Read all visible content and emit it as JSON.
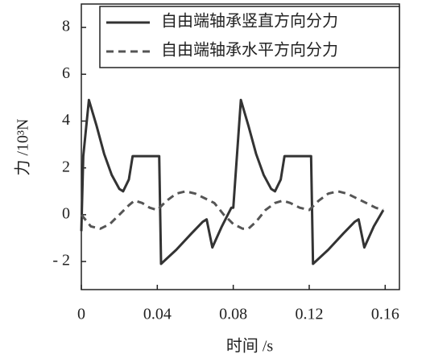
{
  "chart_data": {
    "type": "line",
    "xlabel": "时间 /s",
    "ylabel": "力 /10³N",
    "xlim": [
      0,
      0.1675
    ],
    "xticks": [
      0,
      0.04,
      0.08,
      0.12,
      0.16
    ],
    "ylim": [
      -3.2,
      9
    ],
    "yticks": [
      {
        "value": -2,
        "label": "- 2"
      },
      0,
      2,
      4,
      6,
      8
    ],
    "grid": false,
    "legend": "upper right",
    "series": [
      {
        "name": "自由端轴承竖直方向分力",
        "color": "#333333",
        "dash": "solid",
        "x": [
          0,
          0.001,
          0.004,
          0.008,
          0.012,
          0.016,
          0.02,
          0.022,
          0.025,
          0.027,
          0.028,
          0.034,
          0.041,
          0.042,
          0.05,
          0.058,
          0.064,
          0.066,
          0.069,
          0.074,
          0.079,
          0.08,
          0.084,
          0.088,
          0.092,
          0.096,
          0.1,
          0.102,
          0.105,
          0.107,
          0.108,
          0.114,
          0.121,
          0.122,
          0.13,
          0.138,
          0.144,
          0.146,
          0.149,
          0.154,
          0.159
        ],
        "values": [
          -0.7,
          2.5,
          4.9,
          3.8,
          2.6,
          1.7,
          1.1,
          1.0,
          1.5,
          2.5,
          2.5,
          2.5,
          2.5,
          -2.1,
          -1.5,
          -0.8,
          -0.3,
          -0.2,
          -1.4,
          -0.5,
          0.3,
          0.3,
          4.9,
          3.8,
          2.6,
          1.7,
          1.1,
          1.0,
          1.5,
          2.5,
          2.5,
          2.5,
          2.5,
          -2.1,
          -1.5,
          -0.8,
          -0.3,
          -0.2,
          -1.4,
          -0.5,
          0.2
        ]
      },
      {
        "name": "自由端轴承水平方向分力",
        "color": "#555555",
        "dash": "dashed",
        "x": [
          0,
          0.005,
          0.01,
          0.015,
          0.02,
          0.025,
          0.028,
          0.032,
          0.036,
          0.04,
          0.045,
          0.05,
          0.055,
          0.06,
          0.065,
          0.07,
          0.075,
          0.08,
          0.085,
          0.088,
          0.092,
          0.097,
          0.102,
          0.106,
          0.11,
          0.115,
          0.12,
          0.125,
          0.13,
          0.135,
          0.14,
          0.145,
          0.15,
          0.155,
          0.159
        ],
        "values": [
          0,
          -0.5,
          -0.6,
          -0.4,
          0.0,
          0.4,
          0.6,
          0.5,
          0.3,
          0.2,
          0.6,
          0.9,
          1.0,
          0.9,
          0.7,
          0.5,
          0.0,
          -0.4,
          -0.6,
          -0.6,
          -0.3,
          0.2,
          0.5,
          0.6,
          0.5,
          0.3,
          0.2,
          0.6,
          0.9,
          1.0,
          0.9,
          0.7,
          0.5,
          0.3,
          0.2
        ]
      }
    ]
  }
}
